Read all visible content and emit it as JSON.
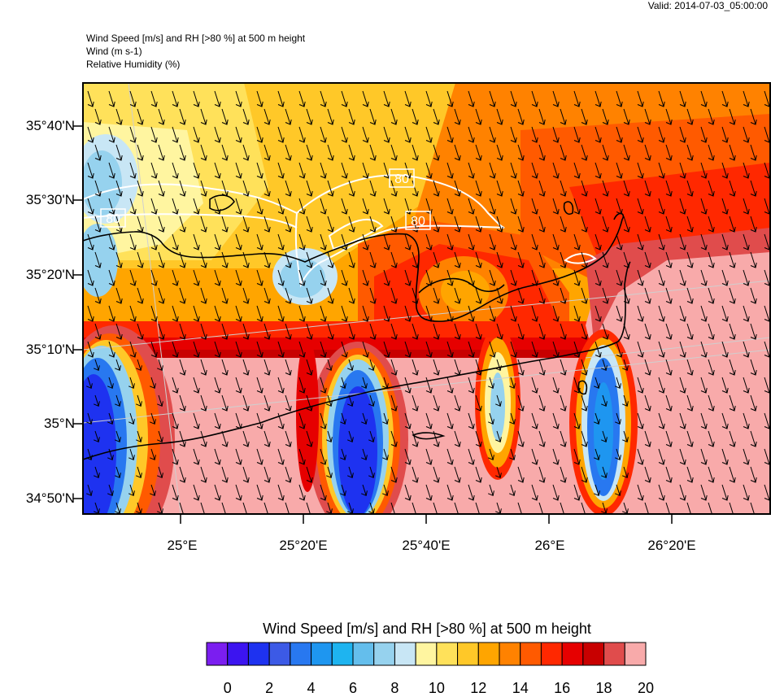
{
  "valid_time": "Valid: 2014-07-03_05:00:00",
  "header_lines": [
    "Wind Speed [m/s] and RH [>80 %] at 500 m height",
    "Wind   (m s-1)",
    "Relative Humidity   (%)"
  ],
  "map": {
    "lat_labels": [
      "35°40'N",
      "35°30'N",
      "35°20'N",
      "35°10'N",
      "35°N",
      "34°50'N"
    ],
    "lon_labels": [
      "25°E",
      "25°20'E",
      "25°40'E",
      "26°E",
      "26°20'E"
    ],
    "rh_contour_labels": [
      "80",
      "80",
      "80"
    ],
    "wind_direction": "north-northwest flow (arrows pointing south-southeast)"
  },
  "colorbar": {
    "title": "Wind Speed [m/s] and RH [>80 %] at 500 m height",
    "tick_labels": [
      "0",
      "2",
      "4",
      "6",
      "8",
      "10",
      "12",
      "14",
      "16",
      "18",
      "20"
    ],
    "colors": [
      "#7b1ef0",
      "#3c14f0",
      "#1e32f0",
      "#3c5ae6",
      "#2878f0",
      "#1e96f0",
      "#1eb4f0",
      "#64beec",
      "#96d2ee",
      "#c8e6f5",
      "#fff5a0",
      "#ffe15a",
      "#ffc828",
      "#ffa500",
      "#ff8200",
      "#ff5a00",
      "#ff2800",
      "#e60000",
      "#c80000",
      "#e04c4c",
      "#f8aaaa"
    ]
  }
}
